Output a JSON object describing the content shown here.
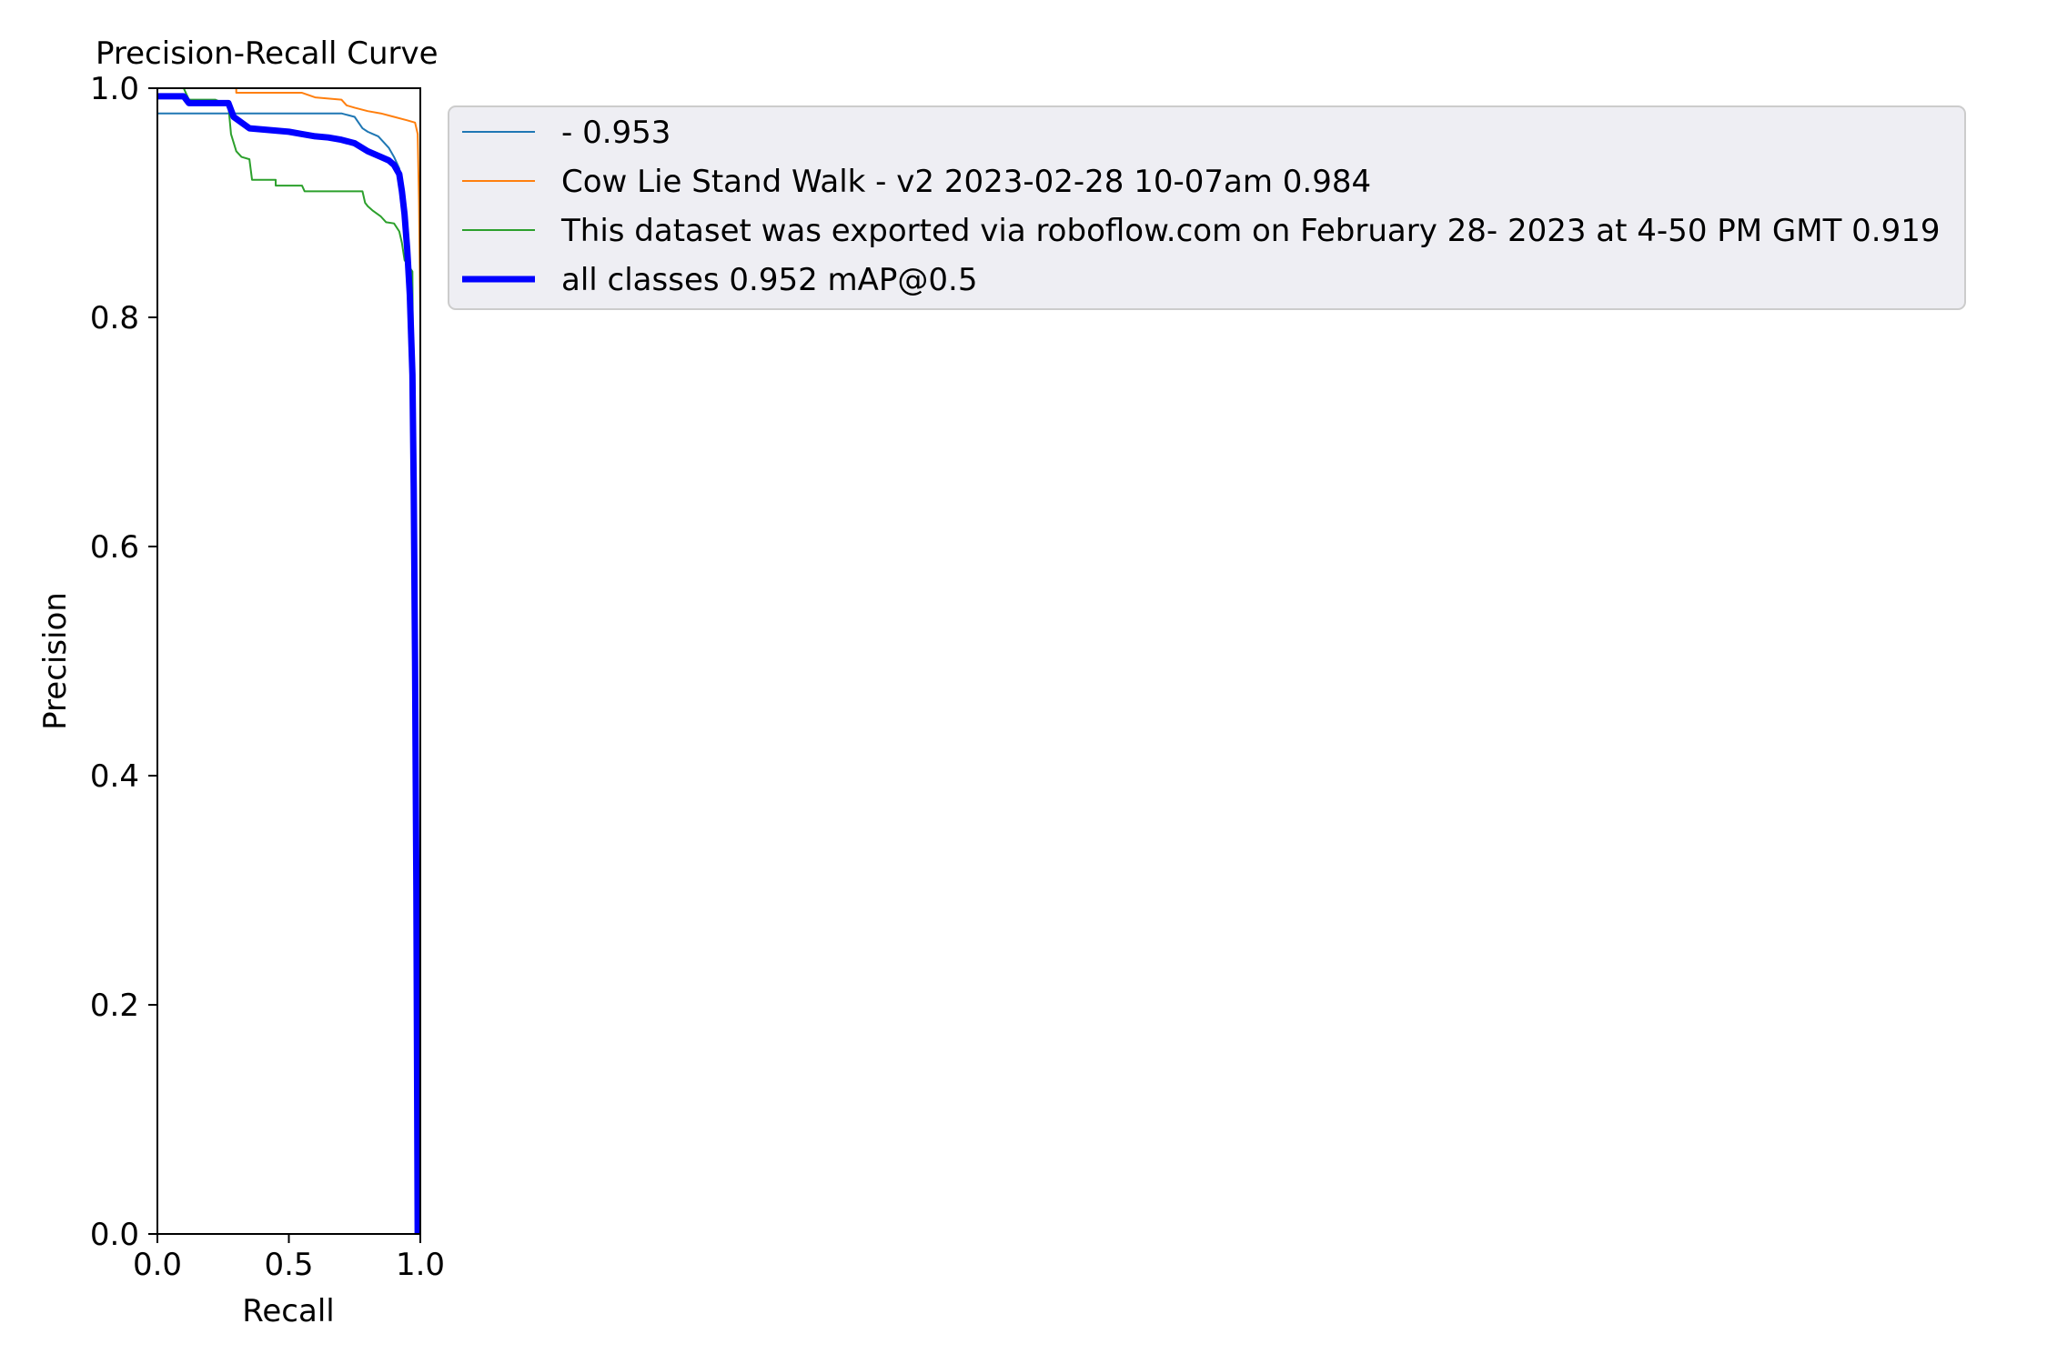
{
  "chart_data": {
    "type": "line",
    "title": "Precision-Recall Curve",
    "xlabel": "Recall",
    "ylabel": "Precision",
    "xlim": [
      0.0,
      1.0
    ],
    "ylim": [
      0.0,
      1.0
    ],
    "xticks": [
      "0.0",
      "0.5",
      "1.0"
    ],
    "yticks": [
      "0.0",
      "0.2",
      "0.4",
      "0.6",
      "0.8",
      "1.0"
    ],
    "grid": false,
    "legend_position": "outside-upper-right",
    "series": [
      {
        "name": "- 0.953",
        "color": "#1f77b4",
        "thick": false,
        "points": [
          [
            0.0,
            1.0
          ],
          [
            0.0,
            0.978
          ],
          [
            0.1,
            0.978
          ],
          [
            0.2,
            0.978
          ],
          [
            0.3,
            0.978
          ],
          [
            0.4,
            0.978
          ],
          [
            0.5,
            0.978
          ],
          [
            0.6,
            0.978
          ],
          [
            0.7,
            0.978
          ],
          [
            0.75,
            0.975
          ],
          [
            0.78,
            0.965
          ],
          [
            0.8,
            0.962
          ],
          [
            0.82,
            0.96
          ],
          [
            0.84,
            0.958
          ],
          [
            0.86,
            0.953
          ],
          [
            0.88,
            0.948
          ],
          [
            0.9,
            0.94
          ],
          [
            0.92,
            0.93
          ],
          [
            0.94,
            0.9
          ],
          [
            0.96,
            0.85
          ],
          [
            0.97,
            0.8
          ],
          [
            0.975,
            0.7
          ],
          [
            0.98,
            0.5
          ],
          [
            0.985,
            0.0
          ]
        ]
      },
      {
        "name": "Cow Lie Stand Walk - v2 2023-02-28 10-07am 0.984",
        "color": "#ff7f0e",
        "thick": false,
        "points": [
          [
            0.0,
            1.0
          ],
          [
            0.3,
            1.0
          ],
          [
            0.3,
            0.996
          ],
          [
            0.45,
            0.996
          ],
          [
            0.55,
            0.996
          ],
          [
            0.6,
            0.992
          ],
          [
            0.7,
            0.99
          ],
          [
            0.72,
            0.985
          ],
          [
            0.75,
            0.983
          ],
          [
            0.8,
            0.98
          ],
          [
            0.85,
            0.978
          ],
          [
            0.9,
            0.975
          ],
          [
            0.95,
            0.972
          ],
          [
            0.98,
            0.97
          ],
          [
            0.99,
            0.96
          ],
          [
            0.995,
            0.9
          ],
          [
            1.0,
            0.8
          ],
          [
            1.0,
            0.0
          ]
        ]
      },
      {
        "name": "This dataset was exported via roboflow.com on February 28- 2023 at 4-50 PM GMT 0.919",
        "color": "#2ca02c",
        "thick": false,
        "points": [
          [
            0.0,
            1.0
          ],
          [
            0.1,
            1.0
          ],
          [
            0.12,
            0.99
          ],
          [
            0.22,
            0.99
          ],
          [
            0.27,
            0.985
          ],
          [
            0.28,
            0.96
          ],
          [
            0.3,
            0.945
          ],
          [
            0.32,
            0.94
          ],
          [
            0.35,
            0.938
          ],
          [
            0.36,
            0.92
          ],
          [
            0.45,
            0.92
          ],
          [
            0.45,
            0.915
          ],
          [
            0.55,
            0.915
          ],
          [
            0.56,
            0.91
          ],
          [
            0.78,
            0.91
          ],
          [
            0.79,
            0.9
          ],
          [
            0.8,
            0.897
          ],
          [
            0.82,
            0.893
          ],
          [
            0.85,
            0.888
          ],
          [
            0.87,
            0.883
          ],
          [
            0.9,
            0.882
          ],
          [
            0.92,
            0.875
          ],
          [
            0.93,
            0.865
          ],
          [
            0.94,
            0.85
          ],
          [
            0.97,
            0.84
          ],
          [
            0.975,
            0.67
          ],
          [
            0.98,
            0.5
          ],
          [
            0.985,
            0.0
          ]
        ]
      },
      {
        "name": "all classes 0.952 mAP@0.5",
        "color": "#0000ff",
        "thick": true,
        "points": [
          [
            0.0,
            0.993
          ],
          [
            0.1,
            0.993
          ],
          [
            0.12,
            0.987
          ],
          [
            0.27,
            0.987
          ],
          [
            0.29,
            0.975
          ],
          [
            0.32,
            0.97
          ],
          [
            0.35,
            0.965
          ],
          [
            0.45,
            0.963
          ],
          [
            0.5,
            0.962
          ],
          [
            0.55,
            0.96
          ],
          [
            0.6,
            0.958
          ],
          [
            0.65,
            0.957
          ],
          [
            0.7,
            0.955
          ],
          [
            0.75,
            0.952
          ],
          [
            0.8,
            0.945
          ],
          [
            0.85,
            0.94
          ],
          [
            0.88,
            0.937
          ],
          [
            0.9,
            0.933
          ],
          [
            0.92,
            0.925
          ],
          [
            0.93,
            0.91
          ],
          [
            0.94,
            0.89
          ],
          [
            0.95,
            0.86
          ],
          [
            0.96,
            0.82
          ],
          [
            0.97,
            0.75
          ],
          [
            0.975,
            0.65
          ],
          [
            0.98,
            0.5
          ],
          [
            0.985,
            0.3
          ],
          [
            0.99,
            0.0
          ]
        ]
      }
    ]
  }
}
